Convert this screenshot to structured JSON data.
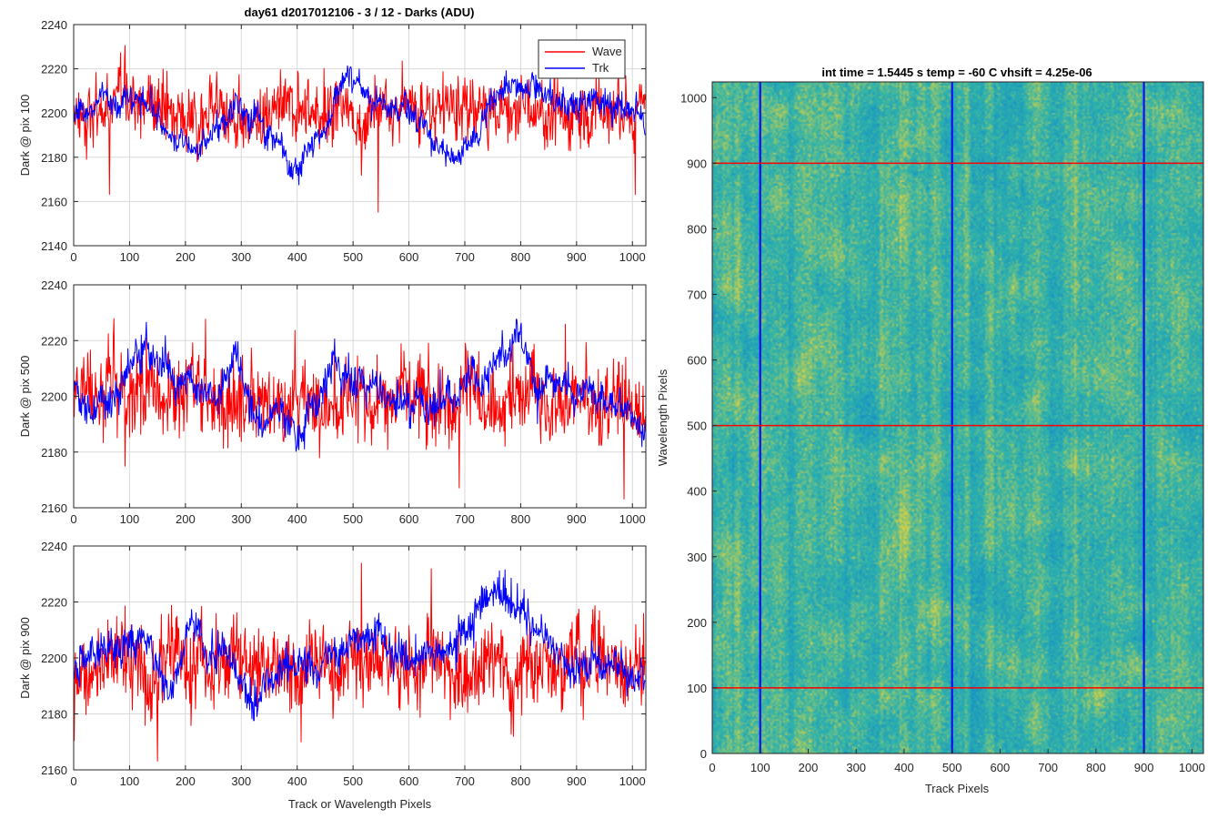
{
  "figure_title": "day61 d2017012106 - 3 / 12 - Darks (ADU)",
  "colors": {
    "wave": "#ff0000",
    "trk": "#0000ff",
    "grid": "#d9d9d9",
    "axis": "#262626"
  },
  "chart_data": [
    {
      "type": "line",
      "title": "day61 d2017012106 - 3 / 12 - Darks (ADU)",
      "ylabel": "Dark @ pix 100",
      "xlabel": "",
      "xlim": [
        0,
        1024
      ],
      "ylim": [
        2140,
        2240
      ],
      "xticks": [
        "0",
        "100",
        "200",
        "300",
        "400",
        "500",
        "600",
        "700",
        "800",
        "900",
        "1000"
      ],
      "yticks": [
        "2140",
        "2160",
        "2180",
        "2200",
        "2220",
        "2240"
      ],
      "grid": true,
      "legend": {
        "placement": "top-right",
        "entries": [
          "Wave",
          "Trk"
        ]
      },
      "series": [
        {
          "name": "Wave",
          "color": "#ff0000",
          "mean": 2200,
          "noise": 7,
          "wander": 1.5,
          "spikes": [
            [
              64,
              2163
            ],
            [
              545,
              2155
            ],
            [
              1005,
              2163
            ],
            [
              860,
              2220
            ]
          ]
        },
        {
          "name": "Trk",
          "color": "#0000ff",
          "mean": 2200,
          "noise": 3,
          "wander": 1,
          "trend": [
            [
              0,
              2198
            ],
            [
              60,
              2206
            ],
            [
              120,
              2205
            ],
            [
              180,
              2190
            ],
            [
              220,
              2183
            ],
            [
              300,
              2205
            ],
            [
              350,
              2192
            ],
            [
              400,
              2176
            ],
            [
              440,
              2190
            ],
            [
              490,
              2218
            ],
            [
              540,
              2205
            ],
            [
              600,
              2200
            ],
            [
              650,
              2185
            ],
            [
              680,
              2180
            ],
            [
              720,
              2190
            ],
            [
              770,
              2215
            ],
            [
              820,
              2207
            ],
            [
              880,
              2205
            ],
            [
              950,
              2203
            ],
            [
              1024,
              2200
            ]
          ]
        }
      ]
    },
    {
      "type": "line",
      "ylabel": "Dark @ pix 500",
      "xlabel": "",
      "xlim": [
        0,
        1024
      ],
      "ylim": [
        2160,
        2240
      ],
      "xticks": [
        "0",
        "100",
        "200",
        "300",
        "400",
        "500",
        "600",
        "700",
        "800",
        "900",
        "1000"
      ],
      "yticks": [
        "2160",
        "2180",
        "2200",
        "2220",
        "2240"
      ],
      "grid": true,
      "series": [
        {
          "name": "Wave",
          "color": "#ff0000",
          "mean": 2198,
          "noise": 7,
          "wander": 1.5,
          "spikes": [
            [
              72,
              2228
            ],
            [
              880,
              2226
            ],
            [
              985,
              2163
            ],
            [
              690,
              2167
            ]
          ]
        },
        {
          "name": "Trk",
          "color": "#0000ff",
          "mean": 2200,
          "noise": 3,
          "wander": 1,
          "trend": [
            [
              0,
              2205
            ],
            [
              40,
              2192
            ],
            [
              100,
              2210
            ],
            [
              130,
              2216
            ],
            [
              200,
              2205
            ],
            [
              250,
              2200
            ],
            [
              290,
              2212
            ],
            [
              320,
              2195
            ],
            [
              360,
              2190
            ],
            [
              400,
              2183
            ],
            [
              450,
              2205
            ],
            [
              520,
              2208
            ],
            [
              600,
              2195
            ],
            [
              680,
              2200
            ],
            [
              760,
              2210
            ],
            [
              800,
              2222
            ],
            [
              830,
              2205
            ],
            [
              900,
              2203
            ],
            [
              980,
              2195
            ],
            [
              1024,
              2188
            ]
          ]
        }
      ]
    },
    {
      "type": "line",
      "ylabel": "Dark @ pix 900",
      "xlabel": "Track or Wavelength Pixels",
      "xlim": [
        0,
        1024
      ],
      "ylim": [
        2160,
        2240
      ],
      "xticks": [
        "0",
        "100",
        "200",
        "300",
        "400",
        "500",
        "600",
        "700",
        "800",
        "900",
        "1000"
      ],
      "yticks": [
        "2160",
        "2180",
        "2200",
        "2220",
        "2240"
      ],
      "grid": true,
      "series": [
        {
          "name": "Wave",
          "color": "#ff0000",
          "mean": 2198,
          "noise": 7,
          "wander": 1.5,
          "spikes": [
            [
              150,
              2163
            ],
            [
              515,
              2234
            ],
            [
              640,
              2232
            ],
            [
              1020,
              2216
            ]
          ]
        },
        {
          "name": "Trk",
          "color": "#0000ff",
          "mean": 2200,
          "noise": 3,
          "wander": 1,
          "trend": [
            [
              0,
              2195
            ],
            [
              60,
              2205
            ],
            [
              120,
              2208
            ],
            [
              170,
              2188
            ],
            [
              210,
              2210
            ],
            [
              260,
              2200
            ],
            [
              320,
              2185
            ],
            [
              380,
              2198
            ],
            [
              420,
              2195
            ],
            [
              500,
              2208
            ],
            [
              600,
              2200
            ],
            [
              680,
              2206
            ],
            [
              720,
              2212
            ],
            [
              770,
              2225
            ],
            [
              820,
              2210
            ],
            [
              880,
              2200
            ],
            [
              960,
              2200
            ],
            [
              1024,
              2192
            ]
          ]
        }
      ]
    },
    {
      "type": "heatmap",
      "title": "int time = 1.5445 s    temp = -60 C    vhsift = 4.25e-06",
      "xlabel": "Track Pixels",
      "ylabel": "Wavelength Pixels",
      "xlim": [
        0,
        1024
      ],
      "ylim": [
        0,
        1024
      ],
      "xticks": [
        "0",
        "100",
        "200",
        "300",
        "400",
        "500",
        "600",
        "700",
        "800",
        "900",
        "1000"
      ],
      "yticks": [
        "0",
        "100",
        "200",
        "300",
        "400",
        "500",
        "600",
        "700",
        "800",
        "900",
        "1000"
      ],
      "colormap": "parula",
      "vertical_lines": {
        "color": "#0000ff",
        "x": [
          100,
          500,
          900
        ]
      },
      "horizontal_lines": {
        "color": "#ff0000",
        "y": [
          100,
          500,
          900
        ]
      }
    }
  ]
}
